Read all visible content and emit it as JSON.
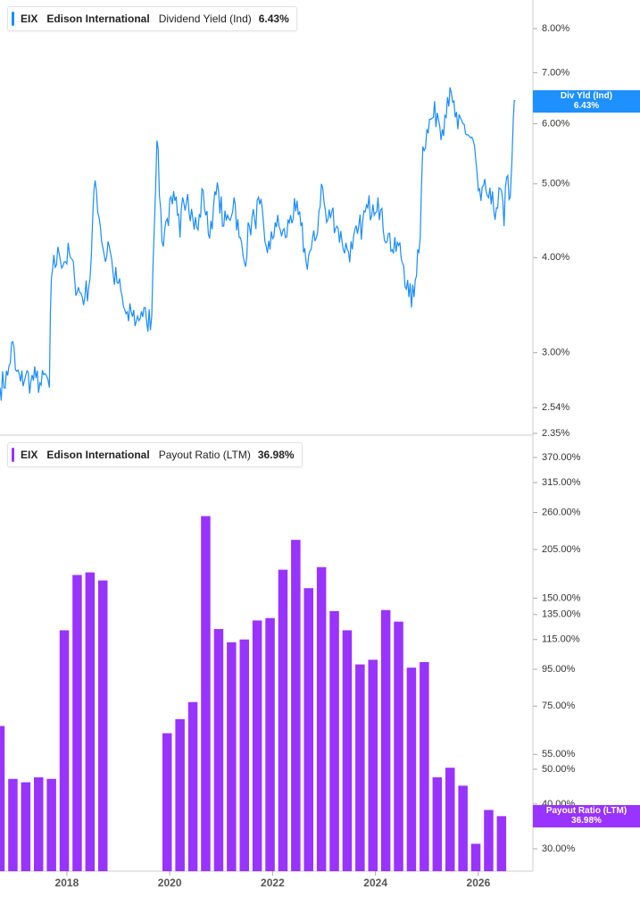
{
  "legend_top": {
    "ticker": "EIX",
    "company": "Edison International",
    "metric": "Dividend Yield (Ind)",
    "value": "6.43%"
  },
  "legend_bottom": {
    "ticker": "EIX",
    "company": "Edison International",
    "metric": "Payout Ratio (LTM)",
    "value": "36.98%"
  },
  "badge_top": {
    "label": "Div Yld (Ind)",
    "value": "6.43%"
  },
  "badge_bottom": {
    "label": "Payout Ratio (LTM)",
    "value": "36.98%"
  },
  "colors": {
    "yield": "#1a8cff",
    "payout": "#9933ff",
    "badge_yield": "#1e90ff",
    "badge_payout": "#9933ff"
  },
  "chart_data": [
    {
      "type": "line",
      "scale": "log",
      "series": [
        {
          "name": "Dividend Yield (Ind)"
        }
      ],
      "y_ticks": [
        "8.00%",
        "7.00%",
        "6.00%",
        "5.00%",
        "4.00%",
        "3.00%",
        "2.54%",
        "2.35%"
      ],
      "y_tick_values": [
        8.0,
        7.0,
        6.0,
        5.0,
        4.0,
        3.0,
        2.54,
        2.35
      ],
      "x_range": [
        2016.7,
        2026.8
      ],
      "last_value": 6.43,
      "x": [
        2016.7,
        2016.85,
        2016.95,
        2017.0,
        2017.1,
        2017.2,
        2017.3,
        2017.4,
        2017.5,
        2017.6,
        2017.66,
        2017.68,
        2017.72,
        2017.85,
        2017.95,
        2018.05,
        2018.15,
        2018.25,
        2018.35,
        2018.45,
        2018.55,
        2018.65,
        2018.75,
        2018.8,
        2018.85,
        2018.9,
        2019.0,
        2019.1,
        2019.2,
        2019.25,
        2019.35,
        2019.45,
        2019.55,
        2019.65,
        2019.75,
        2019.85,
        2019.95,
        2020.05,
        2020.1,
        2020.15,
        2020.2,
        2020.25,
        2020.35,
        2020.45,
        2020.55,
        2020.65,
        2020.75,
        2020.85,
        2020.95,
        2021.05,
        2021.15,
        2021.25,
        2021.35,
        2021.45,
        2021.55,
        2021.65,
        2021.75,
        2021.85,
        2021.95,
        2022.05,
        2022.15,
        2022.25,
        2022.35,
        2022.45,
        2022.55,
        2022.65,
        2022.75,
        2022.85,
        2022.95,
        2023.05,
        2023.15,
        2023.25,
        2023.35,
        2023.45,
        2023.55,
        2023.65,
        2023.75,
        2023.85,
        2023.95,
        2024.05,
        2024.15,
        2024.25,
        2024.35,
        2024.45,
        2024.55,
        2024.65,
        2024.75,
        2024.82,
        2024.87,
        2024.92,
        2025.0,
        2025.1,
        2025.2,
        2025.3,
        2025.4,
        2025.5,
        2025.6,
        2025.7,
        2025.8,
        2025.9,
        2026.0,
        2026.05,
        2026.15,
        2026.25,
        2026.35,
        2026.45,
        2026.5,
        2026.55,
        2026.62,
        2026.68,
        2026.72
      ],
      "y": [
        2.7,
        2.8,
        3.1,
        2.85,
        2.75,
        2.8,
        2.75,
        2.78,
        2.72,
        2.8,
        2.7,
        3.4,
        3.85,
        4.05,
        3.95,
        4.05,
        3.75,
        3.6,
        3.55,
        3.75,
        5.05,
        4.4,
        3.95,
        4.2,
        4.05,
        3.8,
        3.7,
        3.45,
        3.3,
        3.4,
        3.3,
        3.4,
        3.3,
        3.35,
        5.7,
        4.2,
        4.5,
        4.7,
        4.75,
        4.55,
        4.25,
        4.8,
        4.85,
        4.5,
        4.35,
        4.9,
        4.3,
        4.65,
        4.9,
        4.4,
        4.5,
        4.8,
        4.25,
        3.95,
        4.4,
        4.5,
        4.7,
        4.2,
        4.1,
        4.45,
        4.35,
        4.25,
        4.55,
        4.6,
        4.4,
        3.95,
        4.1,
        4.25,
        5.0,
        4.45,
        4.6,
        4.4,
        4.2,
        4.1,
        4.1,
        4.3,
        4.45,
        4.65,
        4.7,
        4.8,
        4.35,
        4.3,
        4.05,
        4.15,
        3.9,
        3.55,
        3.55,
        4.1,
        4.25,
        5.6,
        5.9,
        6.1,
        6.2,
        5.9,
        6.5,
        6.4,
        5.9,
        6.0,
        5.8,
        5.7,
        4.9,
        4.75,
        4.9,
        4.7,
        4.65,
        4.9,
        4.4,
        5.1,
        4.8,
        6.1,
        6.43
      ]
    },
    {
      "type": "bar",
      "scale": "log",
      "series": [
        {
          "name": "Payout Ratio (LTM)"
        }
      ],
      "y_ticks": [
        "370.00%",
        "315.00%",
        "260.00%",
        "205.00%",
        "150.00%",
        "135.00%",
        "115.00%",
        "95.00%",
        "75.00%",
        "55.00%",
        "50.00%",
        "40.00%",
        "30.00%"
      ],
      "y_tick_values": [
        370,
        315,
        260,
        205,
        150,
        135,
        115,
        95,
        75,
        55,
        50,
        40,
        30
      ],
      "x_ticks": [
        "2018",
        "2020",
        "2022",
        "2024",
        "2026"
      ],
      "x_tick_values": [
        2018.0,
        2020.0,
        2022.0,
        2024.0,
        2026.0
      ],
      "x_range": [
        2016.7,
        2026.8
      ],
      "last_value": 36.98,
      "x": [
        2016.7,
        2016.95,
        2017.2,
        2017.45,
        2017.7,
        2017.95,
        2018.2,
        2018.45,
        2018.7,
        2019.95,
        2020.2,
        2020.45,
        2020.7,
        2020.95,
        2021.2,
        2021.45,
        2021.7,
        2021.95,
        2022.2,
        2022.45,
        2022.7,
        2022.95,
        2023.2,
        2023.45,
        2023.7,
        2023.95,
        2024.2,
        2024.45,
        2024.7,
        2024.95,
        2025.2,
        2025.45,
        2025.7,
        2025.95,
        2026.2,
        2026.45
      ],
      "values": [
        66,
        47,
        46,
        47.5,
        47,
        122,
        174,
        177,
        168,
        63,
        69,
        77,
        254,
        123,
        113,
        115,
        130,
        132,
        180,
        218,
        160,
        183,
        138,
        122,
        98,
        101,
        139,
        129,
        96,
        99.5,
        47.5,
        50.5,
        45,
        31,
        38.5,
        37
      ]
    }
  ]
}
